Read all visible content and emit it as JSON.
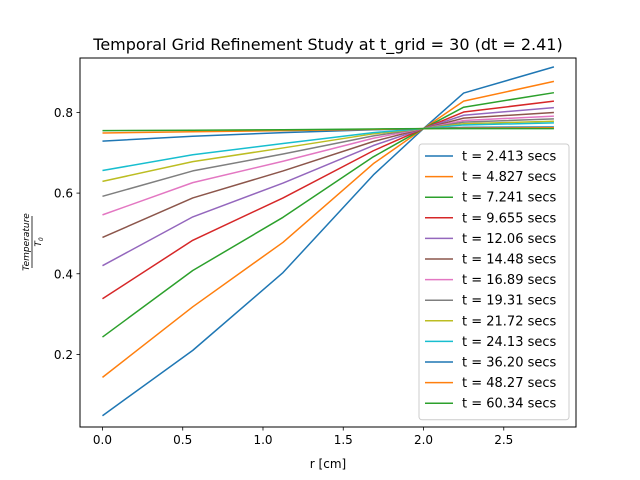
{
  "chart_data": {
    "type": "line",
    "title": "Temporal Grid Refinement Study at t_grid = 30 (dt = 2.41)",
    "xlabel": "r [cm]",
    "ylabel_numerator": "Temperature",
    "ylabel_denominator": "T",
    "ylabel_denominator_sub": "0",
    "xlim": [
      -0.14,
      2.95
    ],
    "ylim": [
      0.02,
      0.935
    ],
    "x_ticks": [
      0.0,
      0.5,
      1.0,
      1.5,
      2.0,
      2.5
    ],
    "x_tick_labels": [
      "0.0",
      "0.5",
      "1.0",
      "1.5",
      "2.0",
      "2.5"
    ],
    "y_ticks": [
      0.2,
      0.4,
      0.6,
      0.8
    ],
    "y_tick_labels": [
      "0.2",
      "0.4",
      "0.6",
      "0.8"
    ],
    "grid": false,
    "legend_position": "lower-right",
    "x": [
      0.0,
      0.5625,
      1.125,
      1.6875,
      2.0,
      2.25,
      2.8125
    ],
    "series": [
      {
        "name": "t = 2.413 secs",
        "color": "#1f77b4",
        "values": [
          0.048,
          0.21,
          0.403,
          0.645,
          0.76,
          0.848,
          0.913
        ]
      },
      {
        "name": "t = 4.827 secs",
        "color": "#ff7f0e",
        "values": [
          0.143,
          0.318,
          0.478,
          0.673,
          0.76,
          0.828,
          0.877
        ]
      },
      {
        "name": "t = 7.241 secs",
        "color": "#2ca02c",
        "values": [
          0.243,
          0.408,
          0.54,
          0.69,
          0.76,
          0.813,
          0.849
        ]
      },
      {
        "name": "t = 9.655 secs",
        "color": "#d62728",
        "values": [
          0.338,
          0.483,
          0.588,
          0.705,
          0.76,
          0.801,
          0.828
        ]
      },
      {
        "name": "t = 12.06 secs",
        "color": "#9467bd",
        "values": [
          0.42,
          0.541,
          0.625,
          0.718,
          0.76,
          0.793,
          0.812
        ]
      },
      {
        "name": "t = 14.48 secs",
        "color": "#8c564b",
        "values": [
          0.49,
          0.588,
          0.655,
          0.728,
          0.76,
          0.786,
          0.8
        ]
      },
      {
        "name": "t = 16.89 secs",
        "color": "#e377c2",
        "values": [
          0.546,
          0.626,
          0.679,
          0.736,
          0.76,
          0.78,
          0.791
        ]
      },
      {
        "name": "t = 19.31 secs",
        "color": "#7f7f7f",
        "values": [
          0.592,
          0.655,
          0.697,
          0.742,
          0.76,
          0.776,
          0.784
        ]
      },
      {
        "name": "t = 21.72 secs",
        "color": "#bcbd22",
        "values": [
          0.629,
          0.678,
          0.712,
          0.747,
          0.76,
          0.772,
          0.778
        ]
      },
      {
        "name": "t = 24.13 secs",
        "color": "#17becf",
        "values": [
          0.656,
          0.695,
          0.723,
          0.75,
          0.76,
          0.769,
          0.774
        ]
      },
      {
        "name": "t = 36.20 secs",
        "color": "#1f77b4",
        "values": [
          0.729,
          0.741,
          0.75,
          0.757,
          0.76,
          0.763,
          0.764
        ]
      },
      {
        "name": "t = 48.27 secs",
        "color": "#ff7f0e",
        "values": [
          0.749,
          0.752,
          0.755,
          0.758,
          0.76,
          0.761,
          0.762
        ]
      },
      {
        "name": "t = 60.34 secs",
        "color": "#2ca02c",
        "values": [
          0.755,
          0.756,
          0.757,
          0.759,
          0.76,
          0.76,
          0.76
        ]
      }
    ]
  }
}
